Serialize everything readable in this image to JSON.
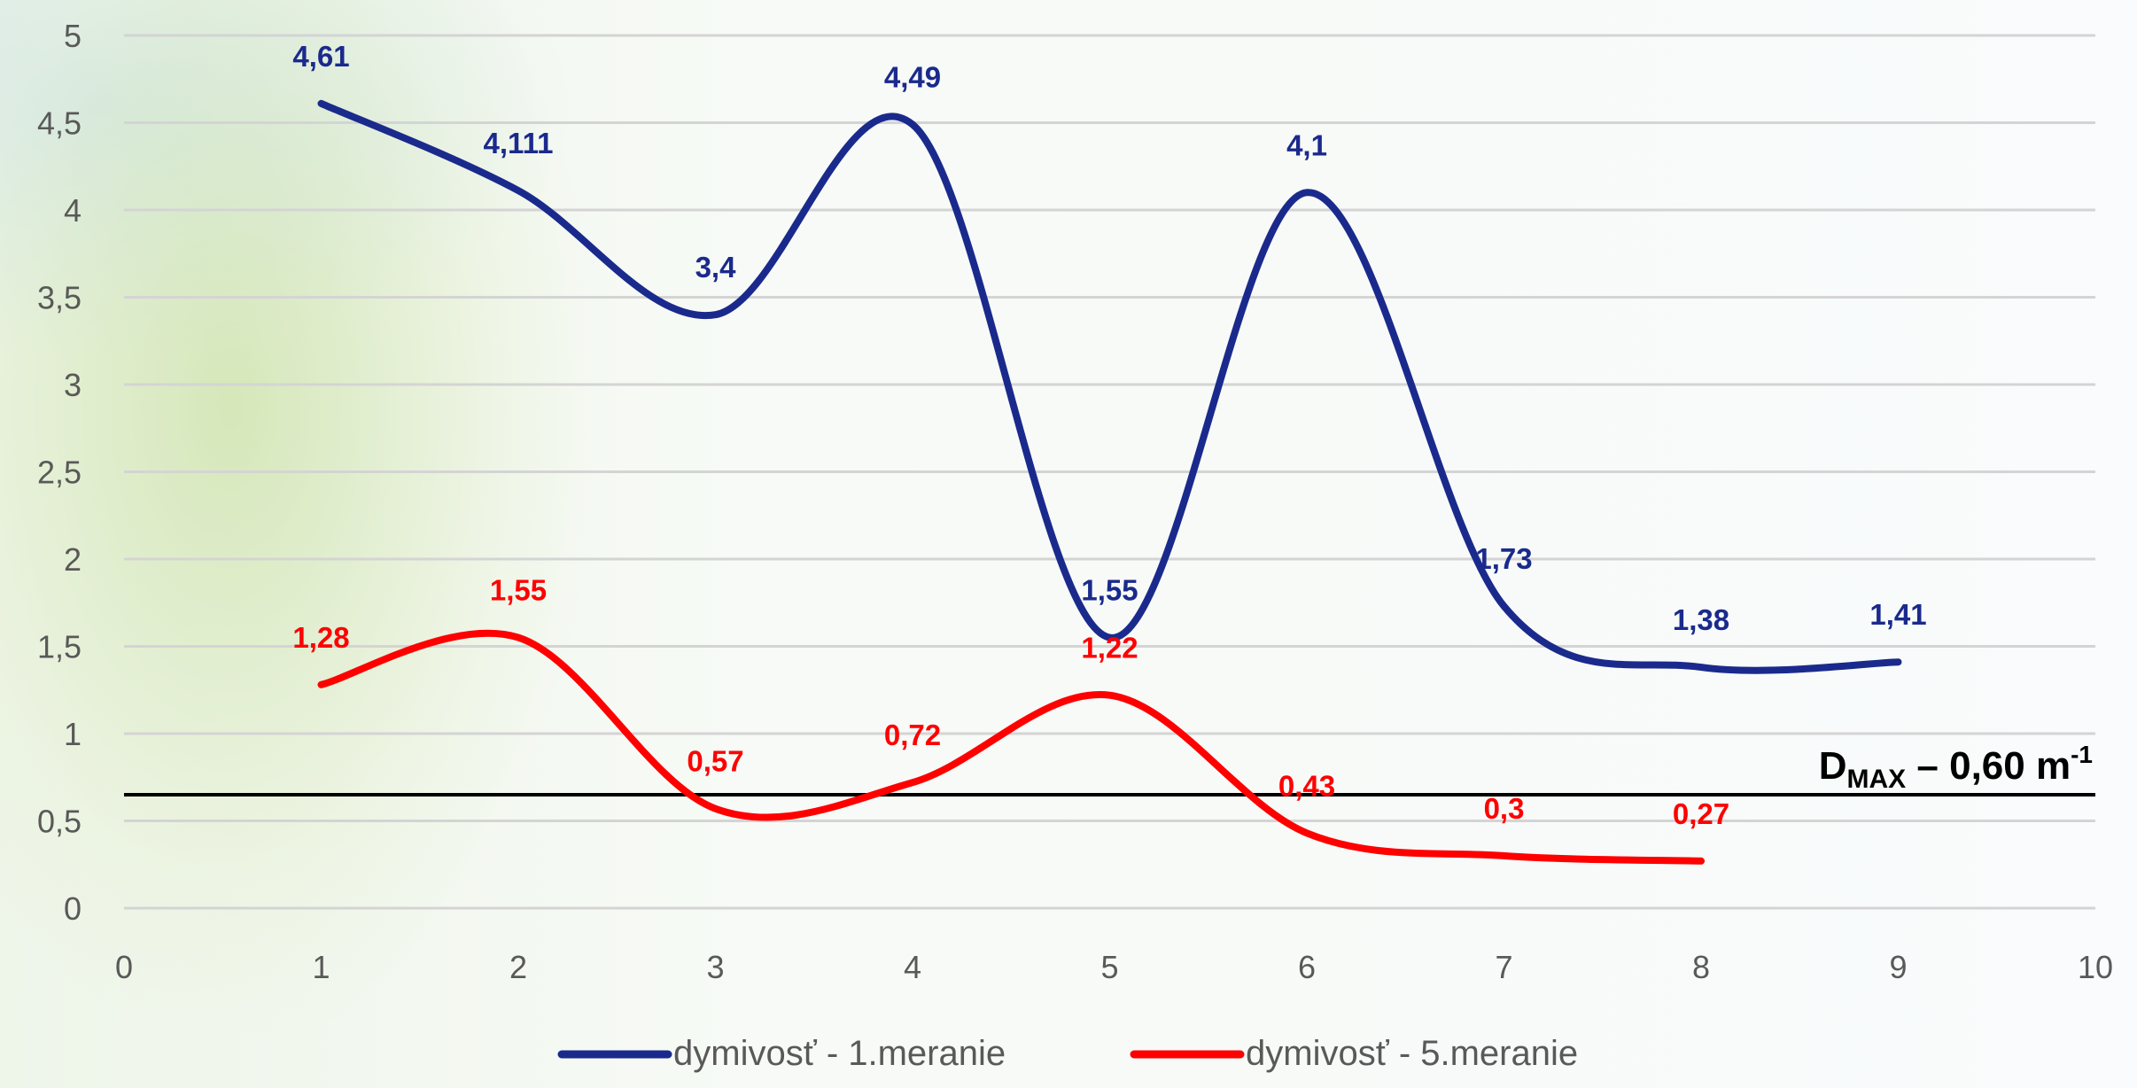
{
  "chart_data": {
    "type": "line",
    "smooth": true,
    "xlim": [
      0,
      10
    ],
    "ylim": [
      0,
      5
    ],
    "x_ticks": [
      "0",
      "1",
      "2",
      "3",
      "4",
      "5",
      "6",
      "7",
      "8",
      "9",
      "10"
    ],
    "y_ticks": [
      "0",
      "0,5",
      "1",
      "1,5",
      "2",
      "2,5",
      "3",
      "3,5",
      "4",
      "4,5",
      "5"
    ],
    "grid": "horizontal",
    "legend_position": "bottom",
    "series": [
      {
        "name": "dymivosť - 1.meranie",
        "color": "#1a2a8c",
        "x": [
          1,
          2,
          3,
          4,
          5,
          6,
          7,
          8,
          9
        ],
        "y": [
          4.61,
          4.111,
          3.4,
          4.49,
          1.55,
          4.1,
          1.73,
          1.38,
          1.41
        ],
        "labels": [
          "4,61",
          "4,111",
          "3,4",
          "4,49",
          "1,55",
          "4,1",
          "1,73",
          "1,38",
          "1,41"
        ]
      },
      {
        "name": "dymivosť - 5.meranie",
        "color": "#ff0000",
        "x": [
          1,
          2,
          3,
          4,
          5,
          6,
          7,
          8
        ],
        "y": [
          1.28,
          1.55,
          0.57,
          0.72,
          1.22,
          0.43,
          0.3,
          0.27
        ],
        "labels": [
          "1,28",
          "1,55",
          "0,57",
          "0,72",
          "1,22",
          "0,43",
          "0,3",
          "0,27"
        ]
      }
    ],
    "reference_line": {
      "y": 0.65,
      "color": "#000000",
      "label_main": "D",
      "label_sub": "MAX",
      "label_rest": " – 0,60 m",
      "label_sup": "-1"
    }
  }
}
